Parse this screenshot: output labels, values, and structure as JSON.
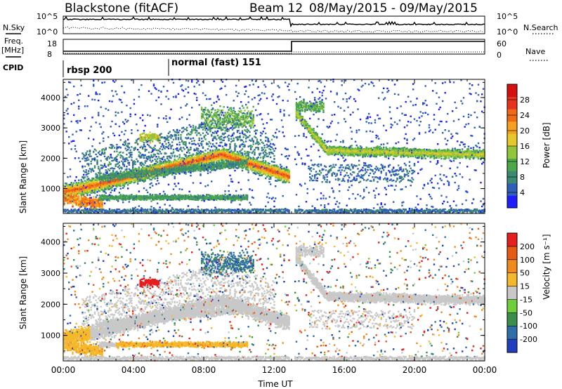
{
  "header": {
    "title": "Blackstone (fitACF)",
    "beam": "Beam 12",
    "date_range": "08/May/2015 - 09/May/2015"
  },
  "side_labels": {
    "nsky": "N.Sky",
    "nsearch": "N.Search",
    "freq": "Freq.",
    "freq_unit": "[MHz]",
    "nave": "Nave",
    "cpid": "CPID"
  },
  "cpid_segments": [
    {
      "label": "rbsp 200",
      "start_hour": 0
    },
    {
      "label": "normal (fast) 151",
      "start_hour": 6
    }
  ],
  "strip_axes": {
    "nsky_ticks": [
      "10^5",
      "10^0"
    ],
    "nsearch_ticks": [
      "10^5",
      "10^0"
    ],
    "freq_ticks": [
      "18",
      "8"
    ],
    "nave_ticks": [
      "60",
      "0"
    ]
  },
  "chart_data": [
    {
      "type": "heatmap",
      "name": "power",
      "xlabel": "Time UT",
      "ylabel": "Slant Range [km]",
      "xlim": [
        0,
        24
      ],
      "ylim": [
        180,
        4600
      ],
      "y_ticks": [
        "1000",
        "2000",
        "3000",
        "4000"
      ],
      "colorbar_label": "Power [dB]",
      "colorbar_ticks": [
        "4",
        "8",
        "12",
        "16",
        "20",
        "24",
        "28"
      ],
      "colorbar_colors": [
        "#1e1eff",
        "#2f5fb8",
        "#3d8a73",
        "#4ba94a",
        "#8fc63a",
        "#e6c82a",
        "#f5a01f",
        "#f06a14",
        "#e6321e",
        "#d61010"
      ]
    },
    {
      "type": "heatmap",
      "name": "velocity",
      "xlabel": "Time UT",
      "ylabel": "Slant Range [km]",
      "xlim": [
        0,
        24
      ],
      "ylim": [
        180,
        4600
      ],
      "y_ticks": [
        "1000",
        "2000",
        "3000",
        "4000"
      ],
      "x_ticks": [
        "00:00",
        "04:00",
        "08:00",
        "12:00",
        "16:00",
        "20:00",
        "00:00"
      ],
      "colorbar_label": "Velocity [m s⁻¹]",
      "colorbar_ticks": [
        "200",
        "100",
        "50",
        "15",
        "-15",
        "-50",
        "-100",
        "-200"
      ],
      "colorbar_colors": [
        "#1f3fbf",
        "#2e6fa8",
        "#3b8f4a",
        "#6fcf3a",
        "#c8c8c8",
        "#f5b82a",
        "#f08a1e",
        "#e65a14",
        "#e61e1e"
      ]
    }
  ]
}
